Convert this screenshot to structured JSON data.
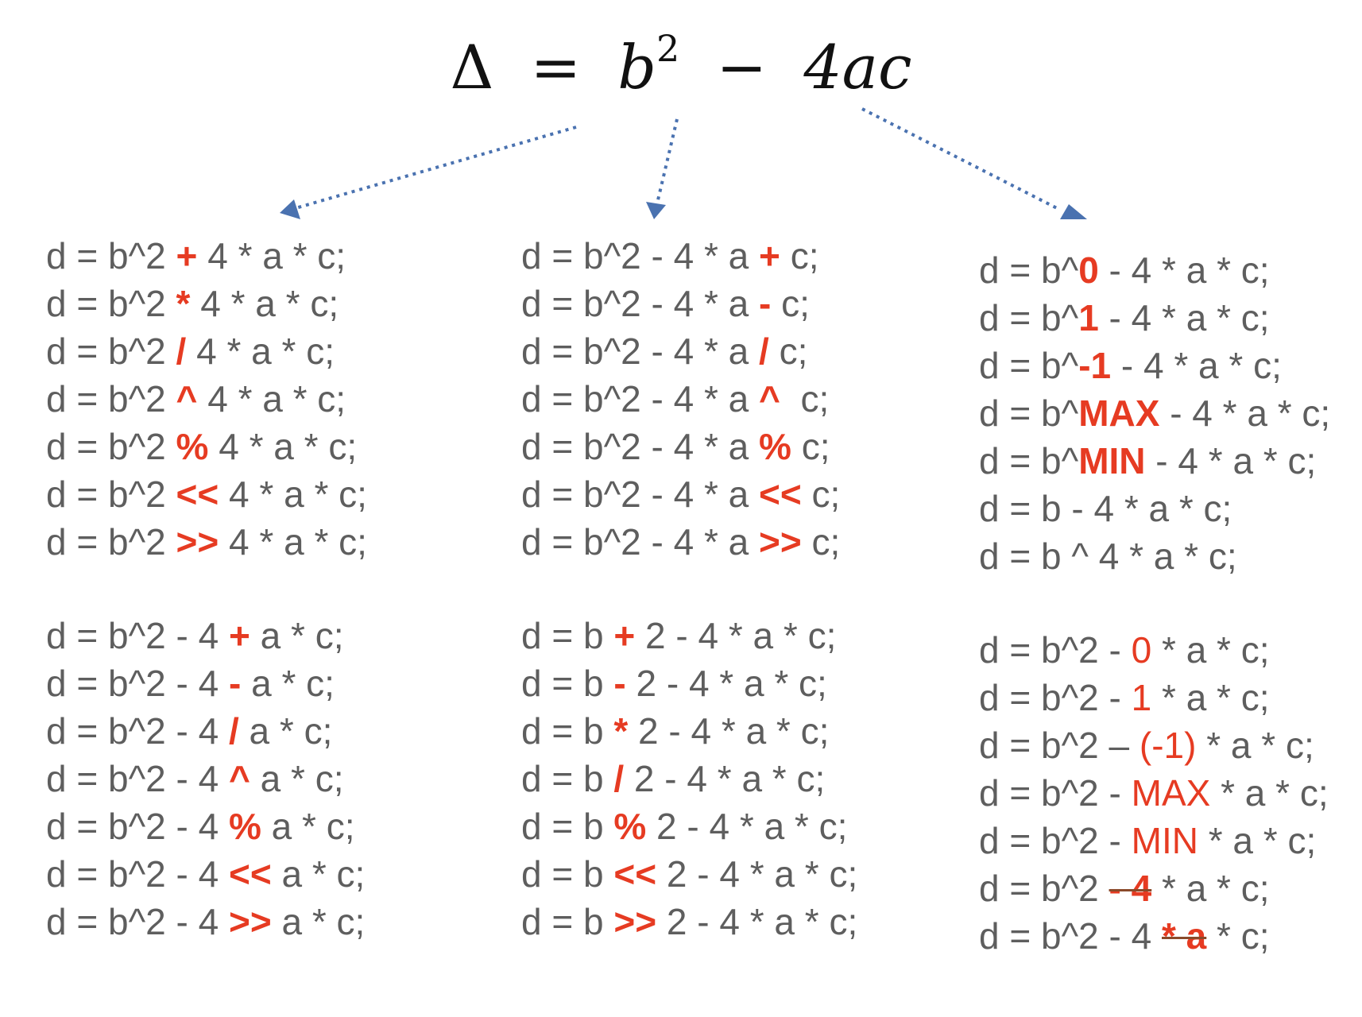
{
  "formula": {
    "symbol": "Δ",
    "equals": "=",
    "b": "b",
    "exponent": "2",
    "minus": "−",
    "rest": "4ac"
  },
  "colors": {
    "text": "#5e5e5e",
    "mutation": "#e63b22",
    "arrow": "#4a72b0"
  },
  "groups": [
    [
      [
        {
          "t": "d = b^2 "
        },
        {
          "t": "+",
          "k": "mb"
        },
        {
          "t": " 4 * a * c;"
        }
      ],
      [
        {
          "t": "d = b^2 "
        },
        {
          "t": "*",
          "k": "mb"
        },
        {
          "t": " 4 * a * c;"
        }
      ],
      [
        {
          "t": "d = b^2 "
        },
        {
          "t": "/",
          "k": "mb"
        },
        {
          "t": " 4 * a * c;"
        }
      ],
      [
        {
          "t": "d = b^2 "
        },
        {
          "t": "^",
          "k": "mb"
        },
        {
          "t": " 4 * a * c;"
        }
      ],
      [
        {
          "t": "d = b^2 "
        },
        {
          "t": "%",
          "k": "mb"
        },
        {
          "t": " 4 * a * c;"
        }
      ],
      [
        {
          "t": "d = b^2 "
        },
        {
          "t": "<<",
          "k": "mb"
        },
        {
          "t": " 4 * a * c;"
        }
      ],
      [
        {
          "t": "d = b^2 "
        },
        {
          "t": ">>",
          "k": "mb"
        },
        {
          "t": " 4 * a * c;"
        }
      ]
    ],
    [
      [
        {
          "t": "d = b^2 - 4 * a "
        },
        {
          "t": "+",
          "k": "mb"
        },
        {
          "t": " c;"
        }
      ],
      [
        {
          "t": "d = b^2 - 4 * a "
        },
        {
          "t": "-",
          "k": "mb"
        },
        {
          "t": " c;"
        }
      ],
      [
        {
          "t": "d = b^2 - 4 * a "
        },
        {
          "t": "/",
          "k": "mb"
        },
        {
          "t": " c;"
        }
      ],
      [
        {
          "t": "d = b^2 - 4 * a "
        },
        {
          "t": "^",
          "k": "mb"
        },
        {
          "t": "  c;"
        }
      ],
      [
        {
          "t": "d = b^2 - 4 * a "
        },
        {
          "t": "%",
          "k": "mb"
        },
        {
          "t": " c;"
        }
      ],
      [
        {
          "t": "d = b^2 - 4 * a "
        },
        {
          "t": "<<",
          "k": "mb"
        },
        {
          "t": " c;"
        }
      ],
      [
        {
          "t": "d = b^2 - 4 * a "
        },
        {
          "t": ">>",
          "k": "mb"
        },
        {
          "t": " c;"
        }
      ]
    ],
    [
      [
        {
          "t": "d = b^"
        },
        {
          "t": "0",
          "k": "mb"
        },
        {
          "t": " - 4 * a * c;"
        }
      ],
      [
        {
          "t": "d = b^"
        },
        {
          "t": "1",
          "k": "mb"
        },
        {
          "t": " - 4 * a * c;"
        }
      ],
      [
        {
          "t": "d = b^"
        },
        {
          "t": "-1",
          "k": "mb"
        },
        {
          "t": " - 4 * a * c;"
        }
      ],
      [
        {
          "t": "d = b^"
        },
        {
          "t": "MAX",
          "k": "mb"
        },
        {
          "t": " - 4 * a * c;"
        }
      ],
      [
        {
          "t": "d = b^"
        },
        {
          "t": "MIN",
          "k": "mb"
        },
        {
          "t": " - 4 * a * c;"
        }
      ],
      [
        {
          "t": "d = b - 4 * a * c;"
        }
      ],
      [
        {
          "t": "d = b ^ 4 * a * c;"
        }
      ]
    ],
    [
      [
        {
          "t": "d = b^2 - 4 "
        },
        {
          "t": "+",
          "k": "mb"
        },
        {
          "t": " a * c;"
        }
      ],
      [
        {
          "t": "d = b^2 - 4 "
        },
        {
          "t": "-",
          "k": "mb"
        },
        {
          "t": " a * c;"
        }
      ],
      [
        {
          "t": "d = b^2 - 4 "
        },
        {
          "t": "/",
          "k": "mb"
        },
        {
          "t": " a * c;"
        }
      ],
      [
        {
          "t": "d = b^2 - 4 "
        },
        {
          "t": "^",
          "k": "mb"
        },
        {
          "t": " a * c;"
        }
      ],
      [
        {
          "t": "d = b^2 - 4 "
        },
        {
          "t": "%",
          "k": "mb"
        },
        {
          "t": " a * c;"
        }
      ],
      [
        {
          "t": "d = b^2 - 4 "
        },
        {
          "t": "<<",
          "k": "mb"
        },
        {
          "t": " a * c;"
        }
      ],
      [
        {
          "t": "d = b^2 - 4 "
        },
        {
          "t": ">>",
          "k": "mb"
        },
        {
          "t": " a * c;"
        }
      ]
    ],
    [
      [
        {
          "t": "d = b "
        },
        {
          "t": "+",
          "k": "mb"
        },
        {
          "t": " 2 - 4 * a * c;"
        }
      ],
      [
        {
          "t": "d = b "
        },
        {
          "t": "-",
          "k": "mb"
        },
        {
          "t": " 2 - 4 * a * c;"
        }
      ],
      [
        {
          "t": "d = b "
        },
        {
          "t": "*",
          "k": "mb"
        },
        {
          "t": " 2 - 4 * a * c;"
        }
      ],
      [
        {
          "t": "d = b "
        },
        {
          "t": "/",
          "k": "mb"
        },
        {
          "t": " 2 - 4 * a * c;"
        }
      ],
      [
        {
          "t": "d = b "
        },
        {
          "t": "%",
          "k": "mb"
        },
        {
          "t": " 2 - 4 * a * c;"
        }
      ],
      [
        {
          "t": "d = b "
        },
        {
          "t": "<<",
          "k": "mb"
        },
        {
          "t": " 2 - 4 * a * c;"
        }
      ],
      [
        {
          "t": "d = b "
        },
        {
          "t": ">>",
          "k": "mb"
        },
        {
          "t": " 2 - 4 * a * c;"
        }
      ]
    ],
    [
      [
        {
          "t": "d = b^2 - "
        },
        {
          "t": "0",
          "k": "m"
        },
        {
          "t": " * a * c;"
        }
      ],
      [
        {
          "t": "d = b^2 - "
        },
        {
          "t": "1",
          "k": "m"
        },
        {
          "t": " * a * c;"
        }
      ],
      [
        {
          "t": "d = b^2 – "
        },
        {
          "t": "(-1)",
          "k": "m"
        },
        {
          "t": " * a * c;"
        }
      ],
      [
        {
          "t": "d = b^2 - "
        },
        {
          "t": "MAX",
          "k": "m"
        },
        {
          "t": " * a * c;"
        }
      ],
      [
        {
          "t": "d = b^2 - "
        },
        {
          "t": "MIN",
          "k": "m"
        },
        {
          "t": " * a * c;"
        }
      ],
      [
        {
          "t": "d = b^2 "
        },
        {
          "t": "- 4",
          "k": "mb s"
        },
        {
          "t": " * a * c;"
        }
      ],
      [
        {
          "t": "d = b^2 - 4 "
        },
        {
          "t": "* a",
          "k": "mb s"
        },
        {
          "t": " * c;"
        }
      ]
    ]
  ]
}
